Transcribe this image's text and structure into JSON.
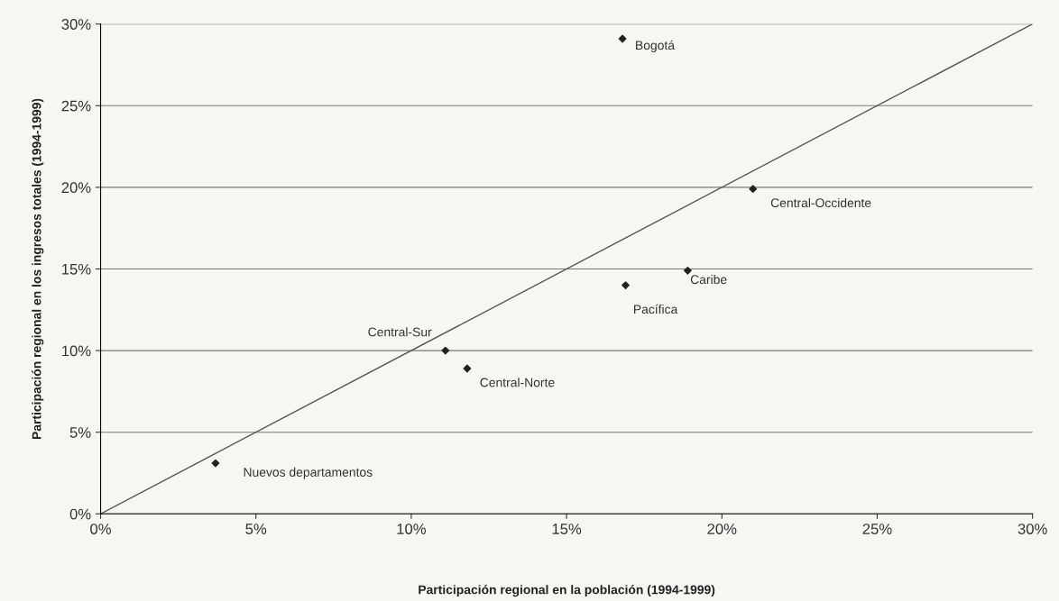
{
  "chart_data": {
    "type": "scatter",
    "xlabel": "Participación regional en la población (1994-1999)",
    "ylabel": "Participación regional en los ingresos totales (1994-1999)",
    "series": [
      {
        "color": "#222222",
        "marker": "diamond",
        "x": [
          16.8,
          21.0,
          18.9,
          16.9,
          11.1,
          11.8,
          3.7
        ],
        "values": [
          29.1,
          19.9,
          14.9,
          14.0,
          10.0,
          8.9,
          3.1
        ]
      },
      {
        "type": "line",
        "color": "#555555",
        "marker": "none",
        "line_style": "solid",
        "x": [
          0,
          30
        ],
        "values": [
          0,
          30
        ]
      }
    ],
    "annotations": [
      {
        "text": "Bogotá",
        "x": 16.8,
        "y": 29.1
      },
      {
        "text": "Central-Occidente",
        "x": 21.0,
        "y": 19.9
      },
      {
        "text": "Caribe",
        "x": 18.9,
        "y": 14.9
      },
      {
        "text": "Pacífica",
        "x": 16.9,
        "y": 14.0
      },
      {
        "text": "Central-Sur",
        "x": 11.1,
        "y": 10.0
      },
      {
        "text": "Central-Norte",
        "x": 11.8,
        "y": 8.9
      },
      {
        "text": "Nuevos departamentos",
        "x": 3.7,
        "y": 3.1
      }
    ],
    "xlim": [
      0,
      30
    ],
    "ylim": [
      0,
      30
    ],
    "xticks": [
      {
        "value": 0,
        "label": "0%"
      },
      {
        "value": 5,
        "label": "5%"
      },
      {
        "value": 10,
        "label": "10%"
      },
      {
        "value": 15,
        "label": "15%"
      },
      {
        "value": 20,
        "label": "20%"
      },
      {
        "value": 25,
        "label": "25%"
      },
      {
        "value": 30,
        "label": "30%"
      }
    ],
    "yticks": [
      {
        "value": 0,
        "label": "0%"
      },
      {
        "value": 5,
        "label": "5%"
      },
      {
        "value": 10,
        "label": "10%"
      },
      {
        "value": 15,
        "label": "15%"
      },
      {
        "value": 20,
        "label": "20%"
      },
      {
        "value": 25,
        "label": "25%"
      },
      {
        "value": 30,
        "label": "30%"
      }
    ],
    "grid": "y",
    "legend": false
  }
}
